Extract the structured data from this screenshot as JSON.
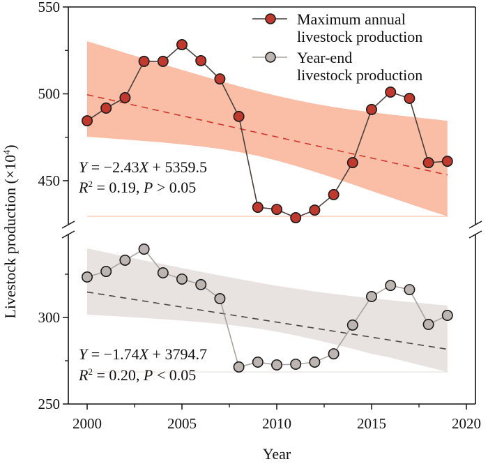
{
  "chart_data": {
    "type": "line",
    "title": "",
    "xlabel": "Year",
    "ylabel": "Livestock production (×10",
    "ylabel_superscript": "4",
    "ylabel_suffix": ")",
    "xlim": [
      1999,
      2020
    ],
    "xticks": [
      2000,
      2005,
      2010,
      2015,
      2020
    ],
    "x_minor_ticks": [
      2002.5,
      2007.5,
      2012.5,
      2017.5
    ],
    "broken_y_axis": true,
    "panels": [
      {
        "name": "upper",
        "ylim": [
          425,
          550
        ],
        "yticks": [
          450,
          500,
          550
        ],
        "y_minor_ticks": [
          475,
          525
        ]
      },
      {
        "name": "lower",
        "ylim": [
          250,
          345
        ],
        "yticks": [
          250,
          300
        ],
        "y_minor_ticks": [
          275,
          325
        ]
      }
    ],
    "x": [
      2000,
      2001,
      2002,
      2003,
      2004,
      2005,
      2006,
      2007,
      2008,
      2009,
      2010,
      2011,
      2012,
      2013,
      2014,
      2015,
      2016,
      2017,
      2018,
      2019
    ],
    "series": [
      {
        "name": "Maximum annual livestock production",
        "legend_lines": [
          "Maximum annual",
          "livestock production"
        ],
        "panel": "upper",
        "marker_color": "#c0392f",
        "line_color": "#4a3f3c",
        "band_color": "#f9bea5",
        "trend_color": "#d0342c",
        "values": [
          484.5,
          491.8,
          497.8,
          518.7,
          518.7,
          528.3,
          519.1,
          508.6,
          487.0,
          434.7,
          433.5,
          428.7,
          433.1,
          442.0,
          460.4,
          491.0,
          501.0,
          497.4,
          460.4,
          461.2
        ],
        "trend": {
          "slope": -2.43,
          "intercept": 5359.5,
          "r2": 0.19,
          "p": "> 0.05"
        },
        "ci_upper": [
          530.3,
          527.0,
          523.6,
          520.3,
          517.0,
          513.8,
          510.6,
          507.4,
          504.4,
          501.5,
          498.9,
          496.5,
          494.3,
          492.4,
          490.8,
          489.4,
          488.1,
          486.9,
          485.7,
          484.5
        ],
        "ci_lower": [
          475.3,
          474.5,
          473.7,
          472.9,
          472.0,
          470.9,
          469.7,
          468.3,
          466.5,
          464.3,
          461.6,
          458.5,
          455.2,
          451.6,
          447.9,
          444.1,
          440.4,
          436.7,
          433.0,
          429.5
        ],
        "equation_text": {
          "line1_lhs": "Y",
          "line1_rhs": " = −2.43",
          "line1_x": "X",
          "line1_tail": " + 5359.5",
          "line2_R": "R",
          "line2_sup": "2",
          "line2_mid": " = 0.19, ",
          "line2_P": "P",
          "line2_tail": " > 0.05"
        }
      },
      {
        "name": "Year-end livestock production",
        "legend_lines": [
          "Year-end",
          "livestock production"
        ],
        "panel": "lower",
        "marker_color": "#bdb5b1",
        "line_color": "#aaa29f",
        "band_color": "#e8e3e0",
        "trend_color": "#4a4442",
        "values": [
          323.4,
          326.6,
          333.1,
          339.5,
          325.8,
          322.2,
          319.0,
          310.9,
          271.4,
          274.2,
          272.6,
          273.0,
          274.2,
          279.0,
          295.6,
          312.1,
          318.5,
          316.1,
          296.0,
          301.2
        ],
        "trend": {
          "slope": -1.74,
          "intercept": 3794.7,
          "r2": 0.2,
          "p": "< 0.05"
        },
        "ci_upper": [
          339.9,
          337.6,
          335.3,
          333.0,
          330.8,
          328.6,
          326.4,
          324.3,
          322.2,
          320.2,
          318.3,
          316.6,
          315.0,
          313.6,
          312.3,
          311.1,
          310.0,
          308.9,
          307.9,
          306.9
        ],
        "ci_lower": [
          301.6,
          301.0,
          300.4,
          299.7,
          299.0,
          298.2,
          297.3,
          296.3,
          295.1,
          293.6,
          291.8,
          289.6,
          287.2,
          284.6,
          281.9,
          279.0,
          276.8,
          274.0,
          271.2,
          268.5
        ],
        "equation_text": {
          "line1_lhs": "Y",
          "line1_rhs": " = −1.74",
          "line1_x": "X",
          "line1_tail": " + 3794.7",
          "line2_R": "R",
          "line2_sup": "2",
          "line2_mid": " = 0.20, ",
          "line2_P": "P",
          "line2_tail": " < 0.05"
        }
      }
    ],
    "legend_position": "top-right"
  }
}
